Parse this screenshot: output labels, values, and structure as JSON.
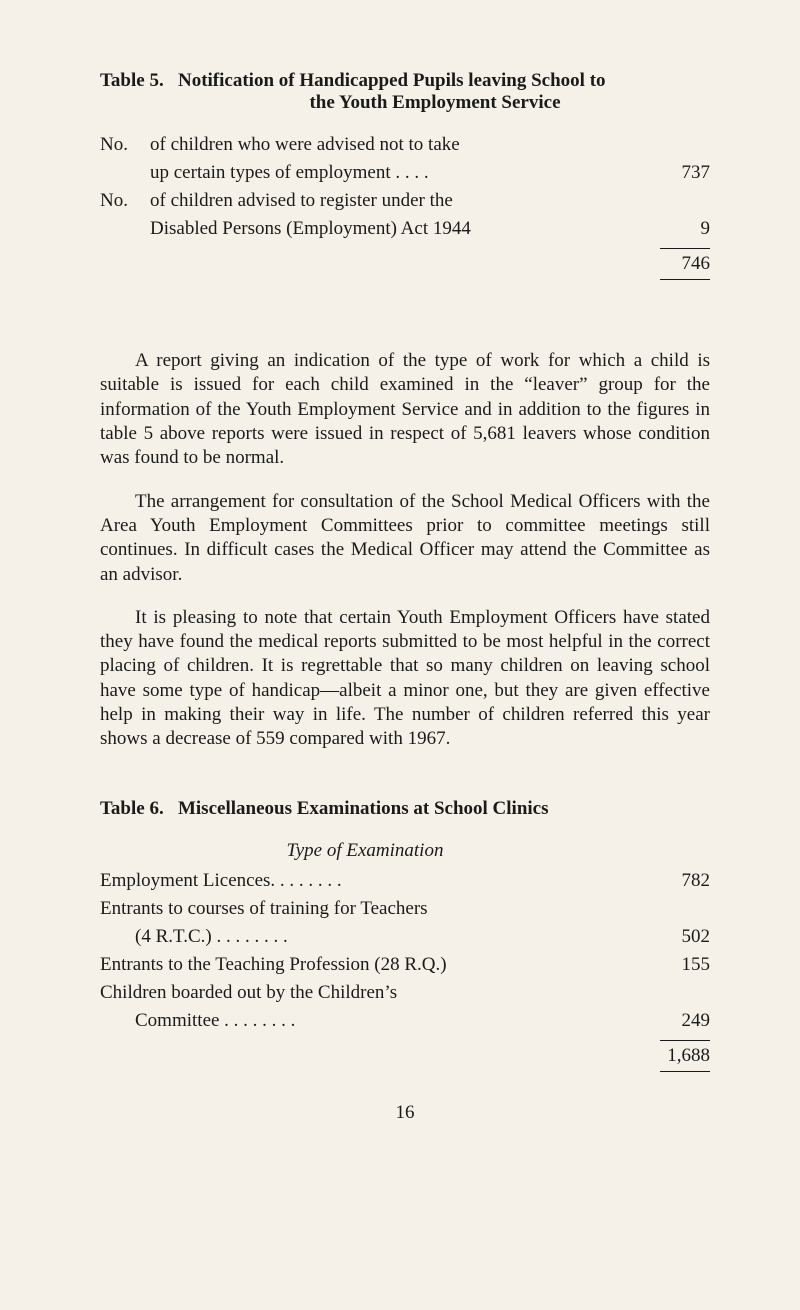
{
  "page": {
    "background_color": "#f5f1e8",
    "text_color": "#1a1a1a",
    "font_family": "Times New Roman",
    "body_fontsize": 19,
    "page_number": "16"
  },
  "table5": {
    "heading_prefix": "Table 5.",
    "heading_line1": "Notification of Handicapped Pupils leaving School to",
    "heading_line2": "the Youth Employment Service",
    "rows": [
      {
        "prefix": "No.",
        "line1": "of children who were advised not to take",
        "line2": "up certain types of employment  . .          . .",
        "value": "737"
      },
      {
        "prefix": "No.",
        "line1": "of children advised to register under the",
        "line2": "Disabled Persons (Employment) Act 1944",
        "value": "9"
      }
    ],
    "total": "746"
  },
  "paragraphs": {
    "p1": "A report giving an indication of the type of work for which a child is suitable is issued for each child examined in the “leaver” group for the information of the Youth Employment Service and in addition to the figures in table 5 above reports were issued in respect of 5,681 leavers whose condition was found to be normal.",
    "p2": "The arrangement for consultation of the School Medical Officers with the Area Youth Employment Committees prior to committee meetings still continues. In difficult cases the Medical Officer may attend the Committee as an advisor.",
    "p3": "It is pleasing to note that certain Youth Employment Officers have stated they have found the medical reports sub­mitted to be most helpful in the correct placing of children. It is regrettable that so many children on leaving school have some type of handicap—albeit a minor one, but they are given effective help in making their way in life. The number of children referred this year shows a decrease of 559 compared with 1967."
  },
  "table6": {
    "heading_prefix": "Table 6.",
    "heading_text": "Miscellaneous Examinations at School Clinics",
    "subheading": "Type of Examination",
    "rows": [
      {
        "label": "Employment Licences. .       . .           . .           . .",
        "value": "782"
      },
      {
        "label": "Entrants to courses of training for Teachers",
        "sublabel": "(4 R.T.C.)            . .         . .           . .           . .",
        "value": "502"
      },
      {
        "label": "Entrants to the Teaching Profession (28 R.Q.)",
        "value": "155"
      },
      {
        "label": "Children boarded out by the Children’s",
        "sublabel": "Committee         . .         . .           . .           . .",
        "value": "249"
      }
    ],
    "total": "1,688"
  }
}
